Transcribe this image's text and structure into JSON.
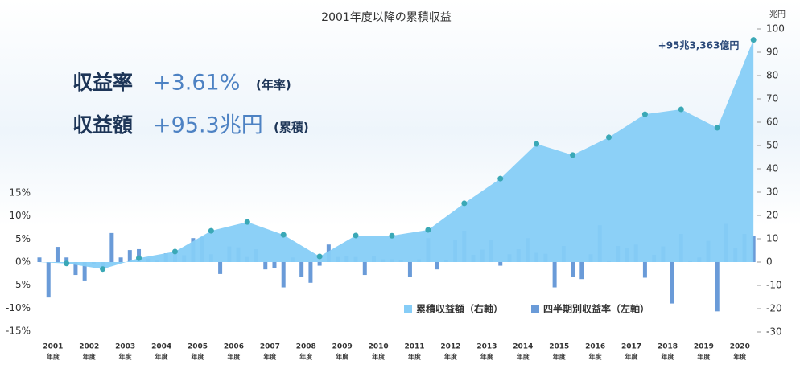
{
  "headline": {
    "rows": [
      {
        "label": "収益率",
        "value": "+3.61%",
        "note": "(年率)"
      },
      {
        "label": "収益額",
        "value": "+95.3兆円",
        "note": "(累積)"
      }
    ]
  },
  "chart_data": [
    {
      "type": "area",
      "title": "2001年度以降の累積収益",
      "categories": [
        "2001",
        "2002",
        "2003",
        "2004",
        "2005",
        "2006",
        "2007",
        "2008",
        "2009",
        "2010",
        "2011",
        "2012",
        "2013",
        "2014",
        "2015",
        "2016",
        "2017",
        "2018",
        "2019",
        "2020"
      ],
      "category_unit": "年度",
      "series": [
        {
          "name": "累積収益額（右軸）",
          "color": "#86cdf7",
          "marker_color": "#3aa8b6",
          "axis": "y2",
          "values": [
            -0.6,
            -3.0,
            1.7,
            4.5,
            13.4,
            17.2,
            11.7,
            2.4,
            11.4,
            11.3,
            13.8,
            25.2,
            35.8,
            50.7,
            45.9,
            53.5,
            63.4,
            65.5,
            57.6,
            95.3
          ]
        }
      ],
      "annotation": "+95兆3,363億円",
      "y2_unit": "兆円",
      "y2lim": [
        -30,
        100
      ],
      "y2ticks": [
        -30,
        -20,
        -10,
        0,
        10,
        20,
        30,
        40,
        50,
        60,
        70,
        80,
        90,
        100
      ]
    },
    {
      "type": "bar",
      "categories": [
        null,
        null,
        null,
        null,
        null,
        null,
        null,
        null,
        null,
        null,
        null,
        null,
        null,
        null,
        null,
        null,
        null,
        null,
        null,
        null,
        null,
        null,
        null,
        null,
        null,
        null,
        null,
        null,
        null,
        null,
        null,
        null,
        null,
        null,
        null,
        null,
        null,
        null,
        null,
        null,
        null,
        null,
        null,
        null,
        null,
        null,
        null,
        null,
        null,
        null,
        null,
        null,
        null,
        null,
        null,
        null,
        null,
        null,
        null,
        null,
        null,
        null,
        null,
        null,
        null,
        null,
        null,
        null,
        null,
        null,
        null,
        null,
        null,
        null,
        null,
        null,
        null,
        null,
        null,
        null
      ],
      "series": [
        {
          "name": "四半期別収益率（左軸）",
          "color": "#6a9bd8",
          "values": [
            1.0,
            -7.7,
            3.3,
            1.0,
            -2.8,
            -4.0,
            -0.5,
            -1.2,
            6.3,
            1.0,
            2.6,
            2.8,
            0.8,
            0.3,
            1.9,
            2.5,
            1.5,
            5.2,
            5.4,
            1.7,
            -2.6,
            3.4,
            3.2,
            1.1,
            2.8,
            -1.6,
            -1.3,
            -5.5,
            1.0,
            -3.2,
            -4.5,
            -0.8,
            3.8,
            1.1,
            1.4,
            1.1,
            -2.8,
            1.4,
            0.6,
            0.6,
            0.4,
            -3.2,
            0.6,
            5.2,
            -1.6,
            0.5,
            4.9,
            6.8,
            1.6,
            2.7,
            4.8,
            -0.8,
            1.7,
            2.8,
            5.2,
            2.0,
            1.8,
            -5.5,
            3.5,
            -3.3,
            -3.7,
            1.7,
            8.0,
            0.2,
            3.5,
            3.0,
            3.8,
            -3.4,
            1.6,
            3.4,
            -9.0,
            6.1,
            0.2,
            1.0,
            4.6,
            -10.7,
            8.3,
            3.0,
            6.1,
            5.6
          ]
        }
      ],
      "ylim": [
        -15,
        15
      ],
      "yticks": [
        {
          "value": -15,
          "label": "-15%"
        },
        {
          "value": -10,
          "label": "-10%"
        },
        {
          "value": -5,
          "label": "-5%"
        },
        {
          "value": 0,
          "label": "0%"
        },
        {
          "value": 5,
          "label": "5%"
        },
        {
          "value": 10,
          "label": "10%"
        },
        {
          "value": 15,
          "label": "15%"
        }
      ]
    }
  ]
}
